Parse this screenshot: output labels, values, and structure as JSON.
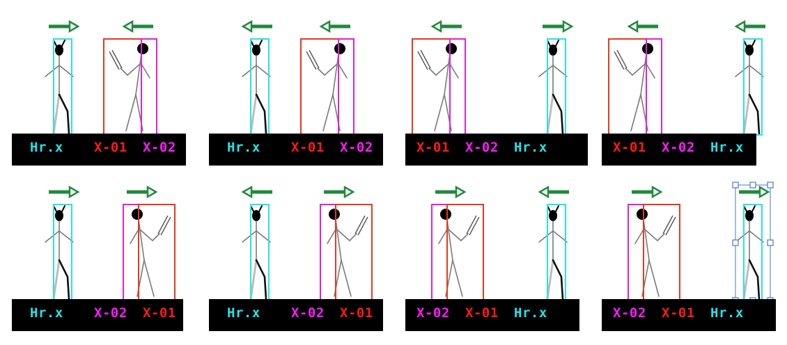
{
  "colors": {
    "hr": "#22e4e8",
    "x01": "#e8381e",
    "x02": "#e21ee0",
    "x01_text": "#ff1a1a",
    "x02_text": "#ff1aff",
    "arrow": "#1f8a3c",
    "label_bar": "#000000",
    "selection_handle": "#4a78c8"
  },
  "labels": {
    "hr": "Hr.x",
    "x01": "X-01",
    "x02": "X-02"
  },
  "panels": [
    {
      "order": [
        "hr",
        "x01",
        "x02"
      ],
      "hr_arrow": "right",
      "enemy_arrow": "left",
      "enemy_facing": "left",
      "hr_side": "left",
      "enemy_order_box": "x01-left"
    },
    {
      "order": [
        "hr",
        "x01",
        "x02"
      ],
      "hr_arrow": "left",
      "enemy_arrow": "left",
      "enemy_facing": "left",
      "hr_side": "left",
      "enemy_order_box": "x01-left"
    },
    {
      "order": [
        "x01",
        "x02",
        "hr"
      ],
      "hr_arrow": "right",
      "enemy_arrow": "left",
      "enemy_facing": "left",
      "hr_side": "right",
      "enemy_order_box": "x01-left"
    },
    {
      "order": [
        "x01",
        "x02",
        "hr"
      ],
      "hr_arrow": "left",
      "enemy_arrow": "left",
      "enemy_facing": "left",
      "hr_side": "right",
      "enemy_order_box": "x01-left"
    },
    {
      "order": [
        "hr",
        "x02",
        "x01"
      ],
      "hr_arrow": "right",
      "enemy_arrow": "right",
      "enemy_facing": "right",
      "hr_side": "left",
      "enemy_order_box": "x02-left"
    },
    {
      "order": [
        "hr",
        "x02",
        "x01"
      ],
      "hr_arrow": "left",
      "enemy_arrow": "right",
      "enemy_facing": "right",
      "hr_side": "left",
      "enemy_order_box": "x02-left"
    },
    {
      "order": [
        "x02",
        "x01",
        "hr"
      ],
      "hr_arrow": "left",
      "enemy_arrow": "right",
      "enemy_facing": "right",
      "hr_side": "right",
      "enemy_order_box": "x02-left"
    },
    {
      "order": [
        "x02",
        "x01",
        "hr"
      ],
      "hr_arrow": "right",
      "enemy_arrow": "right",
      "enemy_facing": "right",
      "hr_side": "right",
      "enemy_order_box": "x02-left",
      "selected": true
    }
  ]
}
